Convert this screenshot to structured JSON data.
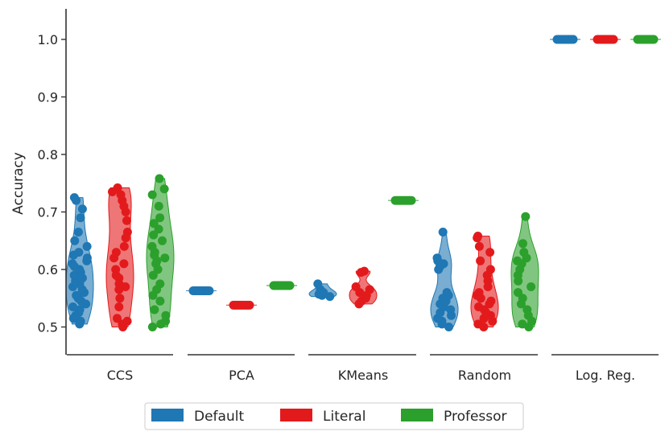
{
  "chart_data": {
    "type": "violin-strip",
    "title": "",
    "ylabel": "Accuracy",
    "xlabel": "",
    "ylim": [
      0.45,
      1.05
    ],
    "yticks": [
      "0.5",
      "0.6",
      "0.7",
      "0.8",
      "0.9",
      "1.0"
    ],
    "ytick_values": [
      0.5,
      0.6,
      0.7,
      0.8,
      0.9,
      1.0
    ],
    "categories": [
      "CCS",
      "PCA",
      "KMeans",
      "Random",
      "Log. Reg."
    ],
    "legend_position": "bottom-center",
    "series": [
      {
        "name": "Default",
        "color": "#1f77b4",
        "groups": [
          {
            "min": 0.505,
            "max": 0.725,
            "values": [
              0.505,
              0.51,
              0.515,
              0.52,
              0.525,
              0.53,
              0.535,
              0.54,
              0.545,
              0.55,
              0.555,
              0.56,
              0.565,
              0.57,
              0.575,
              0.58,
              0.585,
              0.59,
              0.595,
              0.6,
              0.605,
              0.61,
              0.615,
              0.62,
              0.625,
              0.63,
              0.64,
              0.65,
              0.665,
              0.69,
              0.705,
              0.72,
              0.725
            ]
          },
          {
            "min": 0.563,
            "max": 0.563,
            "values": [
              0.563
            ]
          },
          {
            "min": 0.553,
            "max": 0.575,
            "values": [
              0.553,
              0.555,
              0.557,
              0.56,
              0.565,
              0.575
            ]
          },
          {
            "min": 0.5,
            "max": 0.665,
            "values": [
              0.5,
              0.505,
              0.51,
              0.515,
              0.52,
              0.525,
              0.53,
              0.535,
              0.54,
              0.545,
              0.55,
              0.555,
              0.56,
              0.6,
              0.605,
              0.61,
              0.615,
              0.62,
              0.665
            ]
          },
          {
            "min": 1.0,
            "max": 1.0,
            "values": [
              1.0
            ]
          }
        ]
      },
      {
        "name": "Literal",
        "color": "#e31a1c",
        "groups": [
          {
            "min": 0.5,
            "max": 0.742,
            "values": [
              0.5,
              0.505,
              0.51,
              0.515,
              0.535,
              0.55,
              0.565,
              0.57,
              0.575,
              0.585,
              0.59,
              0.6,
              0.61,
              0.62,
              0.63,
              0.64,
              0.655,
              0.665,
              0.685,
              0.7,
              0.71,
              0.72,
              0.73,
              0.735,
              0.74,
              0.742
            ]
          },
          {
            "min": 0.538,
            "max": 0.538,
            "values": [
              0.538
            ]
          },
          {
            "min": 0.54,
            "max": 0.597,
            "values": [
              0.54,
              0.545,
              0.55,
              0.555,
              0.56,
              0.565,
              0.57,
              0.595,
              0.597
            ]
          },
          {
            "min": 0.5,
            "max": 0.658,
            "values": [
              0.5,
              0.505,
              0.51,
              0.515,
              0.52,
              0.525,
              0.53,
              0.535,
              0.54,
              0.545,
              0.55,
              0.555,
              0.56,
              0.57,
              0.58,
              0.59,
              0.6,
              0.615,
              0.63,
              0.64,
              0.655,
              0.658
            ]
          },
          {
            "min": 1.0,
            "max": 1.0,
            "values": [
              1.0
            ]
          }
        ]
      },
      {
        "name": "Professor",
        "color": "#2ca02c",
        "groups": [
          {
            "min": 0.5,
            "max": 0.758,
            "values": [
              0.5,
              0.505,
              0.51,
              0.52,
              0.53,
              0.545,
              0.555,
              0.565,
              0.575,
              0.59,
              0.6,
              0.61,
              0.615,
              0.62,
              0.625,
              0.63,
              0.64,
              0.65,
              0.66,
              0.67,
              0.68,
              0.69,
              0.71,
              0.73,
              0.74,
              0.758
            ]
          },
          {
            "min": 0.572,
            "max": 0.572,
            "values": [
              0.572
            ]
          },
          {
            "min": 0.72,
            "max": 0.72,
            "values": [
              0.72
            ]
          },
          {
            "min": 0.5,
            "max": 0.692,
            "values": [
              0.5,
              0.505,
              0.51,
              0.52,
              0.53,
              0.54,
              0.55,
              0.56,
              0.57,
              0.58,
              0.59,
              0.6,
              0.61,
              0.615,
              0.62,
              0.63,
              0.645,
              0.692
            ]
          },
          {
            "min": 1.0,
            "max": 1.0,
            "values": [
              1.0
            ]
          }
        ]
      }
    ]
  }
}
